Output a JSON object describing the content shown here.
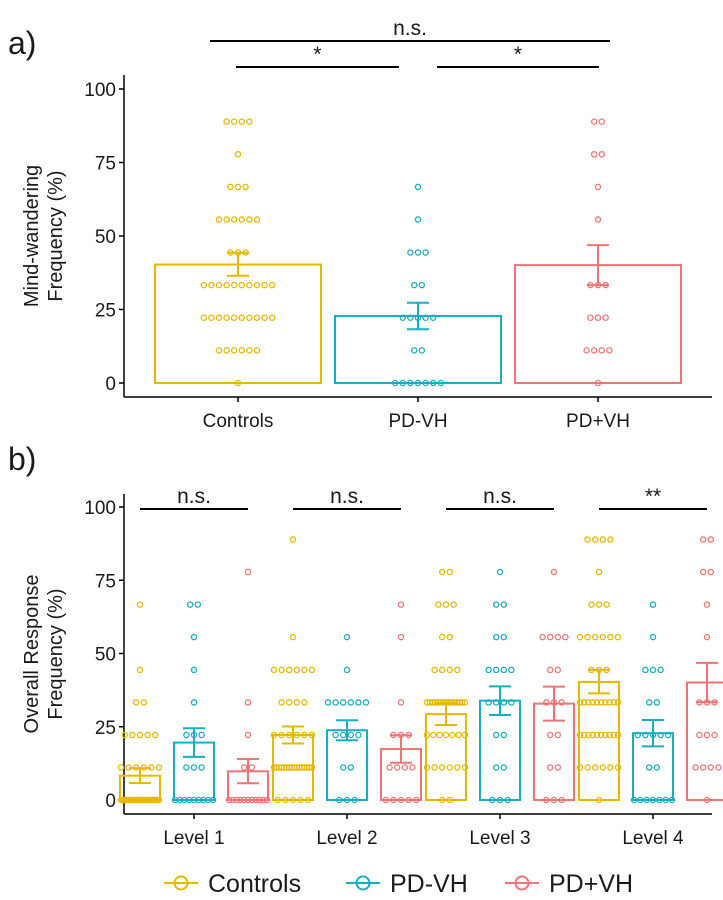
{
  "colors": {
    "Controls": "#E6B800",
    "PD-VH": "#17ADC2",
    "PD+VH": "#F27373"
  },
  "legend": {
    "entries": [
      "Controls",
      "PD-VH",
      "PD+VH"
    ],
    "placement": "bottom"
  },
  "chart_data": [
    {
      "panel_label": "a)",
      "type": "bar",
      "ylabel": [
        "Mind-wandering",
        "Frequency (%)"
      ],
      "ylim": [
        0,
        100
      ],
      "yticks": [
        0,
        25,
        50,
        75,
        100
      ],
      "categories": [
        "Controls",
        "PD-VH",
        "PD+VH"
      ],
      "bars": [
        {
          "group": "Controls",
          "mean": 40.3,
          "se_low": 36.5,
          "se_high": 44.3,
          "points": [
            0,
            11.1,
            11.1,
            11.1,
            11.1,
            11.1,
            11.1,
            22.2,
            22.2,
            22.2,
            22.2,
            22.2,
            22.2,
            22.2,
            22.2,
            22.2,
            22.2,
            33.3,
            33.3,
            33.3,
            33.3,
            33.3,
            33.3,
            33.3,
            33.3,
            33.3,
            33.3,
            44.4,
            44.4,
            44.4,
            55.6,
            55.6,
            55.6,
            55.6,
            55.6,
            55.6,
            66.7,
            66.7,
            66.7,
            77.8,
            88.9,
            88.9,
            88.9,
            88.9
          ]
        },
        {
          "group": "PD-VH",
          "mean": 22.8,
          "se_low": 18.3,
          "se_high": 27.3,
          "points": [
            0,
            0,
            0,
            0,
            0,
            0,
            0,
            11.1,
            11.1,
            22.2,
            22.2,
            22.2,
            22.2,
            22.2,
            33.3,
            33.3,
            44.4,
            44.4,
            44.4,
            55.6,
            66.7
          ]
        },
        {
          "group": "PD+VH",
          "mean": 40.1,
          "se_low": 33.3,
          "se_high": 46.9,
          "points": [
            0,
            11.1,
            11.1,
            11.1,
            11.1,
            22.2,
            22.2,
            22.2,
            33.3,
            33.3,
            33.3,
            55.6,
            66.7,
            77.8,
            77.8,
            88.9,
            88.9
          ]
        }
      ],
      "significance": [
        {
          "from": "Controls",
          "to": "PD-VH",
          "label": "*"
        },
        {
          "from": "PD-VH",
          "to": "PD+VH",
          "label": "*"
        },
        {
          "from": "Controls",
          "to": "PD+VH",
          "label": "n.s."
        }
      ]
    },
    {
      "panel_label": "b)",
      "type": "bar",
      "ylabel": [
        "Overall Response",
        "Frequency (%)"
      ],
      "ylim": [
        0,
        100
      ],
      "yticks": [
        0,
        25,
        50,
        75,
        100
      ],
      "categories": [
        "Level 1",
        "Level 2",
        "Level 3",
        "Level 4"
      ],
      "series": [
        {
          "name": "Controls",
          "values": [
            8.3,
            22.2,
            29.3,
            40.3
          ],
          "se_low": [
            5.8,
            19.3,
            25.6,
            36.4
          ],
          "se_high": [
            10.9,
            25.1,
            33.1,
            44.4
          ],
          "points": [
            [
              0,
              0,
              0,
              0,
              0,
              0,
              0,
              0,
              0,
              0,
              0,
              0,
              0,
              0,
              0,
              0,
              0,
              0,
              0,
              0,
              0,
              0,
              11.1,
              11.1,
              11.1,
              11.1,
              11.1,
              11.1,
              22.2,
              22.2,
              22.2,
              22.2,
              22.2,
              33.3,
              33.3,
              44.4,
              66.7
            ],
            [
              0,
              0,
              0,
              0,
              0,
              11.1,
              11.1,
              11.1,
              11.1,
              11.1,
              11.1,
              11.1,
              11.1,
              11.1,
              11.1,
              11.1,
              11.1,
              11.1,
              11.1,
              11.1,
              11.1,
              22.2,
              22.2,
              22.2,
              22.2,
              22.2,
              22.2,
              33.3,
              33.3,
              33.3,
              33.3,
              44.4,
              44.4,
              44.4,
              44.4,
              44.4,
              44.4,
              55.6,
              88.9
            ],
            [
              0,
              0,
              11.1,
              11.1,
              11.1,
              11.1,
              11.1,
              11.1,
              22.2,
              22.2,
              22.2,
              22.2,
              22.2,
              22.2,
              22.2,
              33.3,
              33.3,
              33.3,
              33.3,
              33.3,
              33.3,
              33.3,
              33.3,
              33.3,
              33.3,
              33.3,
              33.3,
              33.3,
              33.3,
              33.3,
              44.4,
              44.4,
              44.4,
              44.4,
              55.6,
              55.6,
              66.7,
              66.7,
              66.7,
              77.8,
              77.8
            ],
            [
              0,
              11.1,
              11.1,
              11.1,
              11.1,
              11.1,
              11.1,
              22.2,
              22.2,
              22.2,
              22.2,
              22.2,
              22.2,
              22.2,
              22.2,
              22.2,
              22.2,
              33.3,
              33.3,
              33.3,
              33.3,
              33.3,
              33.3,
              33.3,
              33.3,
              33.3,
              33.3,
              44.4,
              44.4,
              44.4,
              55.6,
              55.6,
              55.6,
              55.6,
              55.6,
              55.6,
              66.7,
              66.7,
              66.7,
              77.8,
              88.9,
              88.9,
              88.9,
              88.9
            ]
          ]
        },
        {
          "name": "PD-VH",
          "values": [
            19.6,
            23.8,
            33.9,
            22.8
          ],
          "se_low": [
            14.7,
            20.4,
            29.0,
            18.3
          ],
          "se_high": [
            24.5,
            27.2,
            38.8,
            27.3
          ],
          "points": [
            [
              0,
              0,
              0,
              0,
              0,
              0,
              0,
              0,
              0,
              11.1,
              11.1,
              11.1,
              22.2,
              22.2,
              22.2,
              33.3,
              44.4,
              55.6,
              66.7,
              66.7
            ],
            [
              0,
              0,
              0,
              11.1,
              11.1,
              22.2,
              22.2,
              22.2,
              22.2,
              33.3,
              33.3,
              33.3,
              33.3,
              33.3,
              33.3,
              44.4,
              55.6
            ],
            [
              0,
              0,
              0,
              11.1,
              11.1,
              22.2,
              22.2,
              33.3,
              33.3,
              33.3,
              33.3,
              44.4,
              44.4,
              44.4,
              44.4,
              55.6,
              55.6,
              66.7,
              66.7,
              77.8
            ],
            [
              0,
              0,
              0,
              0,
              0,
              0,
              0,
              11.1,
              11.1,
              22.2,
              22.2,
              22.2,
              22.2,
              22.2,
              33.3,
              33.3,
              44.4,
              44.4,
              44.4,
              55.6,
              66.7
            ]
          ]
        },
        {
          "name": "PD+VH",
          "values": [
            9.8,
            17.4,
            32.9,
            40.1
          ],
          "se_low": [
            5.7,
            12.7,
            27.1,
            33.4
          ],
          "se_high": [
            14.0,
            22.1,
            38.7,
            46.8
          ],
          "points": [
            [
              0,
              0,
              0,
              0,
              0,
              0,
              0,
              0,
              0,
              0,
              0,
              11.1,
              11.1,
              22.2,
              33.3,
              77.8
            ],
            [
              0,
              0,
              0,
              0,
              0,
              11.1,
              11.1,
              11.1,
              11.1,
              22.2,
              22.2,
              22.2,
              33.3,
              55.6,
              66.7
            ],
            [
              0,
              0,
              0,
              11.1,
              11.1,
              22.2,
              22.2,
              33.3,
              33.3,
              33.3,
              44.4,
              44.4,
              55.6,
              55.6,
              55.6,
              55.6,
              77.8
            ],
            [
              0,
              11.1,
              11.1,
              11.1,
              11.1,
              22.2,
              22.2,
              22.2,
              33.3,
              33.3,
              33.3,
              55.6,
              66.7,
              77.8,
              77.8,
              88.9,
              88.9
            ]
          ]
        }
      ],
      "significance": [
        {
          "category": "Level 1",
          "label": "n.s."
        },
        {
          "category": "Level 2",
          "label": "n.s."
        },
        {
          "category": "Level 3",
          "label": "n.s."
        },
        {
          "category": "Level 4",
          "label": "**"
        }
      ]
    }
  ]
}
